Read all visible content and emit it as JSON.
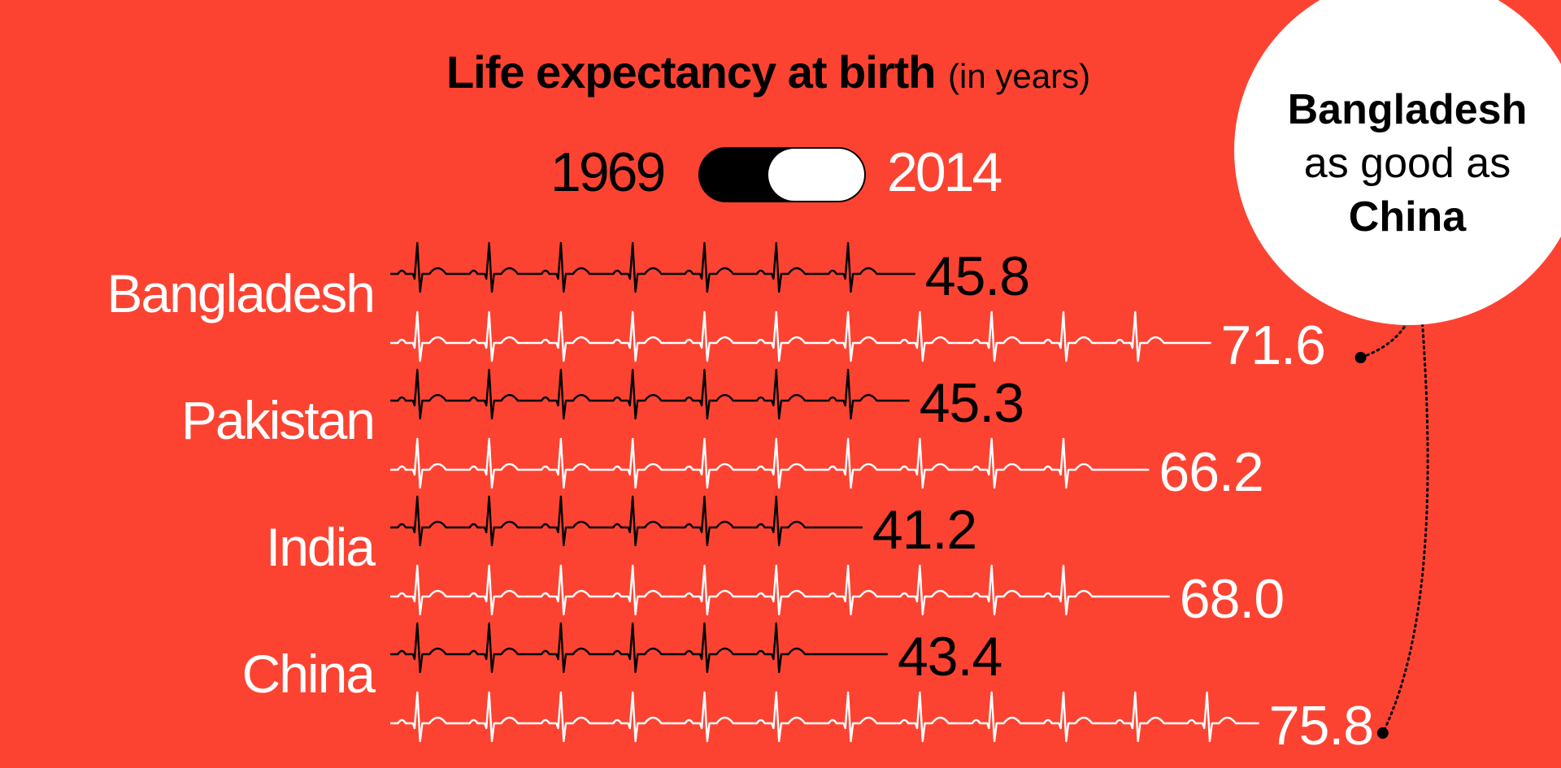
{
  "title": {
    "main": "Life expectancy at birth",
    "sub": "(in years)"
  },
  "toggle": {
    "left_label": "1969",
    "right_label": "2014",
    "selected": "2014"
  },
  "callout": {
    "line1": "Bangladesh",
    "line2": "as good as",
    "line3": "China"
  },
  "colors": {
    "background": "#fc4332",
    "year_1969": "#000000",
    "year_2014": "#ffffff"
  },
  "chart_data": {
    "type": "bar",
    "title": "Life expectancy at birth",
    "ylabel": "in years",
    "categories": [
      "Bangladesh",
      "Pakistan",
      "India",
      "China"
    ],
    "series": [
      {
        "name": "1969",
        "values": [
          45.8,
          45.3,
          41.2,
          43.4
        ],
        "labels": [
          "45.8",
          "45.3",
          "41.2",
          "43.4"
        ]
      },
      {
        "name": "2014",
        "values": [
          71.6,
          66.2,
          68.0,
          75.8
        ],
        "labels": [
          "71.6",
          "66.2",
          "68.0",
          "75.8"
        ]
      }
    ]
  }
}
